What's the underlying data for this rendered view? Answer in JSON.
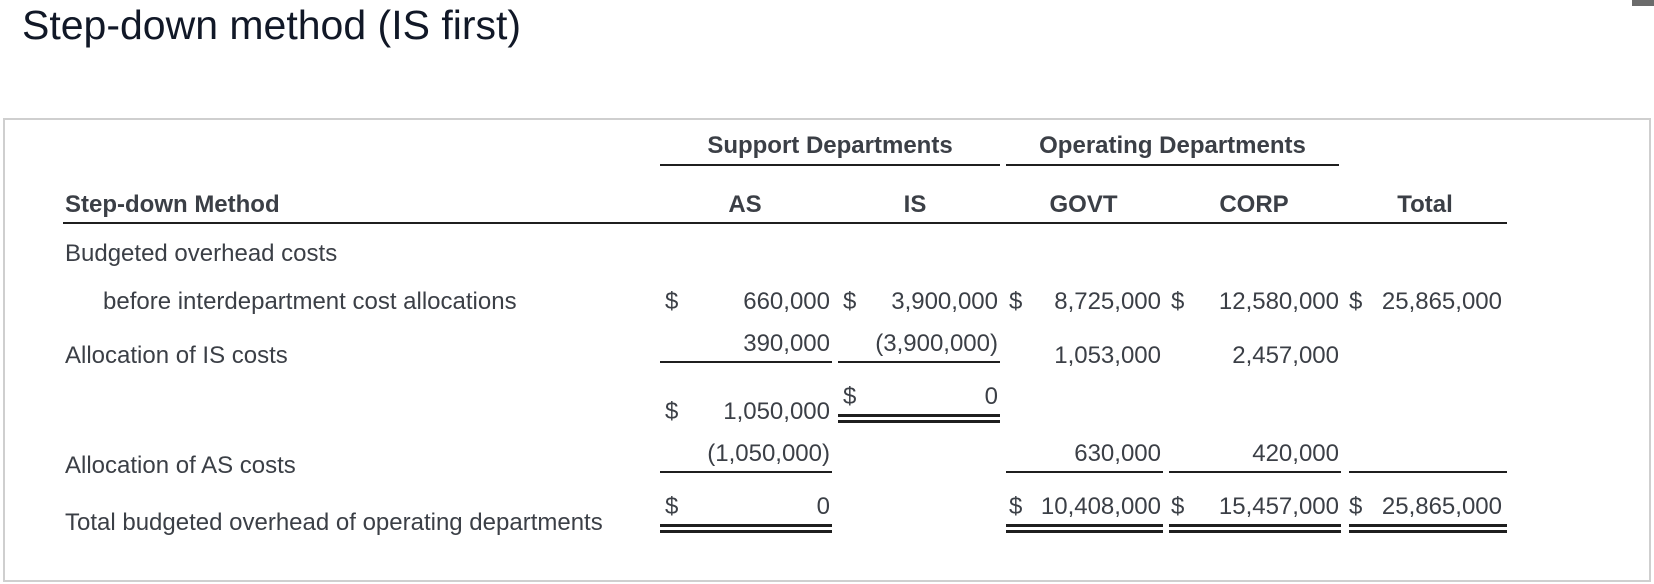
{
  "page_title": "Step-down method (IS first)",
  "table": {
    "group_support": "Support Departments",
    "group_operating": "Operating Departments",
    "row_header": "Step-down Method",
    "col_as": "AS",
    "col_is": "IS",
    "col_govt": "GOVT",
    "col_corp": "CORP",
    "col_total": "Total",
    "currency": "$",
    "row1": {
      "label": "Budgeted overhead costs",
      "sublabel": "before interdepartment cost allocations",
      "as": "660,000",
      "is": "3,900,000",
      "govt": "8,725,000",
      "corp": "12,580,000",
      "total": "25,865,000"
    },
    "row2": {
      "label": "Allocation of IS costs",
      "as": "390,000",
      "is": "(3,900,000)",
      "govt": "1,053,000",
      "corp": "2,457,000"
    },
    "subtotal": {
      "as": "1,050,000",
      "is": "0"
    },
    "row3": {
      "label": "Allocation of AS costs",
      "as": "(1,050,000)",
      "govt": "630,000",
      "corp": "420,000"
    },
    "row4": {
      "label": "Total budgeted overhead of operating departments",
      "as": "0",
      "govt": "10,408,000",
      "corp": "15,457,000",
      "total": "25,865,000"
    }
  }
}
